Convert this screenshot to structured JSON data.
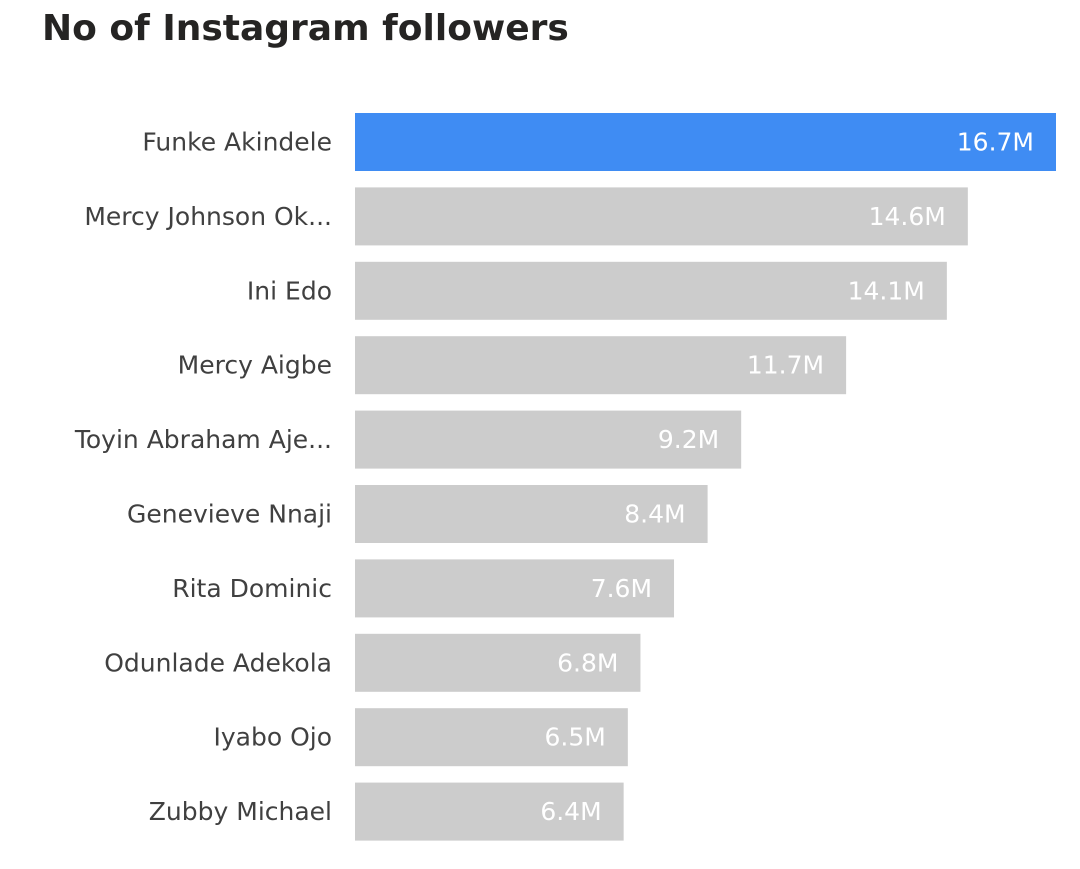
{
  "chart_data": {
    "type": "bar",
    "orientation": "horizontal",
    "title": "No of Instagram followers",
    "xlabel": "",
    "ylabel": "",
    "categories": [
      "Funke Akindele",
      "Mercy Johnson Ok...",
      "Ini Edo",
      "Mercy Aigbe",
      "Toyin Abraham Aje...",
      "Genevieve Nnaji",
      "Rita Dominic",
      "Odunlade Adekola",
      "Iyabo Ojo",
      "Zubby Michael"
    ],
    "values": [
      16.7,
      14.6,
      14.1,
      11.7,
      9.2,
      8.4,
      7.6,
      6.8,
      6.5,
      6.4
    ],
    "data_labels": [
      "16.7M",
      "14.6M",
      "14.1M",
      "11.7M",
      "9.2M",
      "8.4M",
      "7.6M",
      "6.8M",
      "6.5M",
      "6.4M"
    ],
    "unit": "M",
    "xlim": [
      0,
      16.7
    ],
    "highlight_index": 0,
    "colors": {
      "highlight": "#3f8cf3",
      "default": "#cccccc",
      "data_label": "#ffffff",
      "category_label": "#404040"
    },
    "grid": false,
    "legend": "none"
  }
}
